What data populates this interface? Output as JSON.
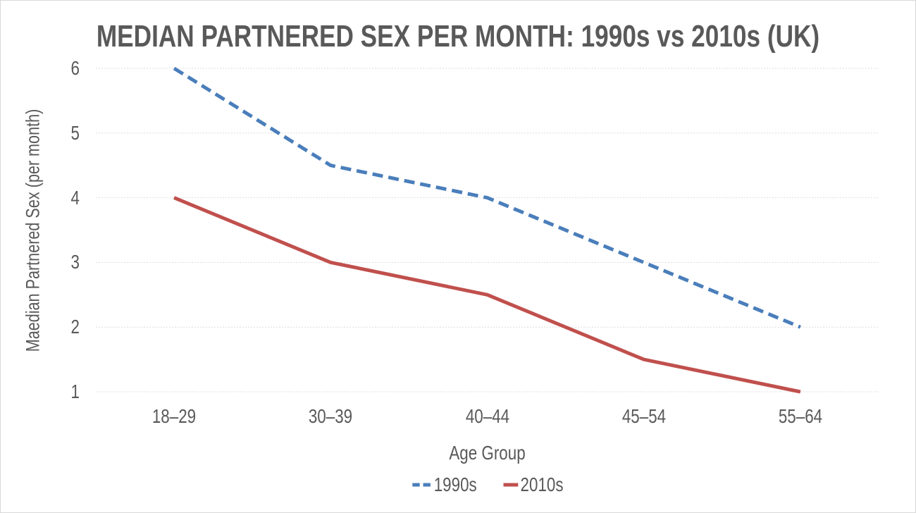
{
  "chart_data": {
    "type": "line",
    "title": "MEDIAN PARTNERED SEX PER MONTH: 1990s vs 2010s (UK)",
    "xlabel": "Age Group",
    "ylabel": "Maedian Partnered Sex (per month)",
    "categories": [
      "18–29",
      "30–39",
      "40–44",
      "45–54",
      "55–64"
    ],
    "yticks": [
      1,
      2,
      3,
      4,
      5,
      6
    ],
    "ylim": [
      1,
      6
    ],
    "grid": "horizontal-only",
    "legend_position": "bottom-center",
    "series": [
      {
        "name": "1990s",
        "values": [
          6,
          4.5,
          4,
          3,
          2
        ],
        "color": "#4a7ebb",
        "style": "dashed"
      },
      {
        "name": "2010s",
        "values": [
          4,
          3,
          2.5,
          1.5,
          1
        ],
        "color": "#c0504d",
        "style": "solid"
      }
    ],
    "colors": {
      "text": "#595959",
      "gridline": "#dddddd",
      "background": "#ffffff",
      "border": "#d9d9d9"
    }
  }
}
